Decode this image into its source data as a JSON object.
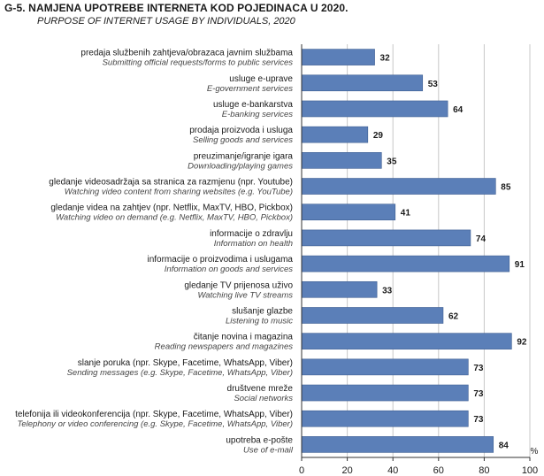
{
  "chart_data": {
    "type": "bar",
    "orientation": "horizontal",
    "title": "G-5.  NAMJENA UPOTREBE INTERNETA KOD POJEDINACA U 2020.",
    "subtitle": "PURPOSE OF INTERNET USAGE BY INDIVIDUALS, 2020",
    "unit": "%",
    "xlim": [
      0,
      100
    ],
    "xticks": [
      0,
      20,
      40,
      60,
      80,
      100
    ],
    "grid": true,
    "bar_color": "#5b7fb8",
    "categories": [
      {
        "label": "predaja službenih zahtjeva/obrazaca javnim službama",
        "label_en": "Submitting official requests/forms to public services",
        "value": 32
      },
      {
        "label": "usluge e-uprave",
        "label_en": "E-government services",
        "value": 53
      },
      {
        "label": "usluge e-bankarstva",
        "label_en": "E-banking services",
        "value": 64
      },
      {
        "label": "prodaja proizvoda i usluga",
        "label_en": "Selling goods and services",
        "value": 29
      },
      {
        "label": "preuzimanje/igranje igara",
        "label_en": "Downloading/playing games",
        "value": 35
      },
      {
        "label": "gledanje videosadržaja sa stranica za razmjenu (npr. Youtube)",
        "label_en": "Watching video content from sharing  websites (e.g. YouTube)",
        "value": 85
      },
      {
        "label": "gledanje videa na zahtjev (npr. Netflix, MaxTV, HBO, Pickbox)",
        "label_en": "Watching video on demand (e.g. Netflix, MaxTV, HBO, Pickbox)",
        "value": 41
      },
      {
        "label": "informacije o zdravlju",
        "label_en": "Information on health",
        "value": 74
      },
      {
        "label": "informacije o proizvodima i uslugama",
        "label_en": "Information on goods and services",
        "value": 91
      },
      {
        "label": "gledanje TV prijenosa uživo",
        "label_en": "Watching live TV streams",
        "value": 33
      },
      {
        "label": "slušanje glazbe",
        "label_en": "Listening to music",
        "value": 62
      },
      {
        "label": "čitanje novina i magazina",
        "label_en": "Reading newspapers and magazines",
        "value": 92
      },
      {
        "label": "slanje poruka (npr. Skype, Facetime, WhatsApp, Viber)",
        "label_en": "Sending messages (e.g. Skype, Facetime, WhatsApp, Viber)",
        "value": 73
      },
      {
        "label": "društvene mreže",
        "label_en": "Social networks",
        "value": 73
      },
      {
        "label": "telefonija ili videokonferencija (npr. Skype, Facetime, WhatsApp, Viber)",
        "label_en": "Telephony or video conferencing (e.g. Skype, Facetime, WhatsApp, Viber)",
        "value": 73
      },
      {
        "label": "upotreba e-pošte",
        "label_en": "Use of e-mail",
        "value": 84
      }
    ]
  }
}
